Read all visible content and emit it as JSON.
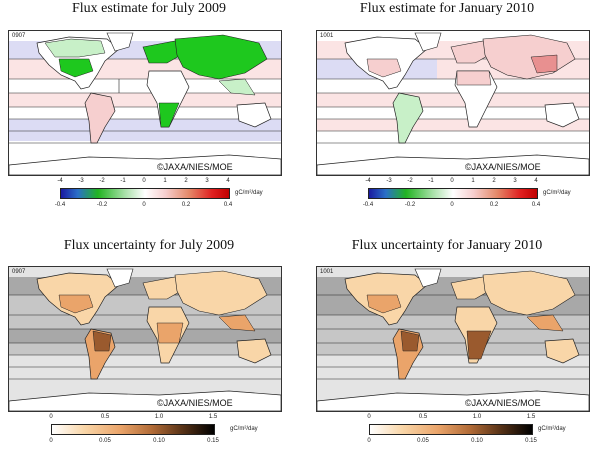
{
  "panels": [
    {
      "title": "Flux estimate for July 2009",
      "code": "0907",
      "copyright": "©JAXA/NIES/MOE",
      "colorbar": {
        "top_ticks": [
          "-4",
          "-3",
          "-2",
          "-1",
          "0",
          "1",
          "2",
          "3",
          "4"
        ],
        "bottom_ticks": [
          "-0.4",
          "-0.2",
          "0",
          "0.2",
          "0.4"
        ],
        "unit": "gC/m²/day",
        "type": "diverging"
      }
    },
    {
      "title": "Flux estimate for January 2010",
      "code": "1001",
      "copyright": "©JAXA/NIES/MOE",
      "colorbar": {
        "top_ticks": [
          "-4",
          "-3",
          "-2",
          "-1",
          "0",
          "1",
          "2",
          "3",
          "4"
        ],
        "bottom_ticks": [
          "-0.4",
          "-0.2",
          "0",
          "0.2",
          "0.4"
        ],
        "unit": "gC/m²/day",
        "type": "diverging"
      }
    },
    {
      "title": "Flux uncertainty for July 2009",
      "code": "0907",
      "copyright": "©JAXA/NIES/MOE",
      "colorbar": {
        "top_ticks": [
          "0",
          "0.5",
          "1.0",
          "1.5"
        ],
        "bottom_ticks": [
          "0",
          "0.05",
          "0.10",
          "0.15"
        ],
        "unit": "gC/m²/day",
        "type": "sequential"
      }
    },
    {
      "title": "Flux uncertainty for January 2010",
      "code": "1001",
      "copyright": "©JAXA/NIES/MOE",
      "colorbar": {
        "top_ticks": [
          "0",
          "0.5",
          "1.0",
          "1.5"
        ],
        "bottom_ticks": [
          "0",
          "0.05",
          "0.10",
          "0.15"
        ],
        "unit": "gC/m²/day",
        "type": "sequential"
      }
    }
  ],
  "colors": {
    "sink_strong": "#1ec81e",
    "sink_light": "#c8f0c8",
    "source_light": "#f6cfcf",
    "source_strong": "#e89090",
    "ocean_sink": "#dcdcf4",
    "ocean_source": "#fbe4e4",
    "unc_land_light": "#f9d6a8",
    "unc_land_mid": "#eaa46a",
    "unc_land_dark": "#9a5a2e",
    "unc_ocean_light": "#e4e4e4",
    "unc_ocean_mid": "#c6c6c6",
    "unc_ocean_dark": "#a8a8a8"
  }
}
